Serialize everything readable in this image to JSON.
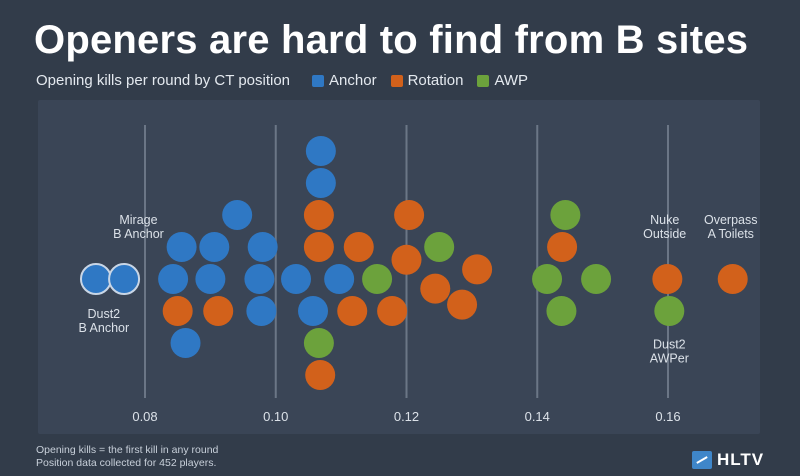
{
  "title": "Openers are hard to find from B sites",
  "subtitle": "Opening kills per round by CT position",
  "legend": [
    {
      "label": "Anchor",
      "color": "#2f78c4"
    },
    {
      "label": "Rotation",
      "color": "#d2611b"
    },
    {
      "label": "AWP",
      "color": "#6ca23c"
    }
  ],
  "footnote": {
    "line1": "Opening kills = the first kill in any round",
    "line2": "Position data collected for 452 players."
  },
  "brand": "HLTV",
  "chart_data": {
    "type": "scatter",
    "title": "Openers are hard to find from B sites",
    "subtitle": "Opening kills per round by CT position",
    "xlim": [
      0.075,
      0.175
    ],
    "ticks": [
      0.08,
      0.1,
      0.12,
      0.14,
      0.16
    ],
    "tick_labels": [
      "0.08",
      "0.10",
      "0.12",
      "0.14",
      "0.16"
    ],
    "grid": true,
    "legend_position": "top",
    "colors": {
      "Anchor": "#2f78c4",
      "Rotation": "#d2611b",
      "AWP": "#6ca23c",
      "Highlight": "#4a7fb6"
    },
    "points": [
      {
        "x": 0.0725,
        "row": 0,
        "g": "Highlight"
      },
      {
        "x": 0.0768,
        "row": 0,
        "g": "Highlight"
      },
      {
        "x": 0.0856,
        "row": -1,
        "g": "Anchor"
      },
      {
        "x": 0.0906,
        "row": -1,
        "g": "Anchor"
      },
      {
        "x": 0.098,
        "row": -1,
        "g": "Anchor"
      },
      {
        "x": 0.0941,
        "row": -2,
        "g": "Anchor"
      },
      {
        "x": 0.0843,
        "row": 0,
        "g": "Anchor"
      },
      {
        "x": 0.09,
        "row": 0,
        "g": "Anchor"
      },
      {
        "x": 0.0975,
        "row": 0,
        "g": "Anchor"
      },
      {
        "x": 0.085,
        "row": 1,
        "g": "Rotation"
      },
      {
        "x": 0.0912,
        "row": 1,
        "g": "Anchor_sep"
      },
      {
        "x": 0.0978,
        "row": 1,
        "g": "Anchor"
      },
      {
        "x": 0.0862,
        "row": 2,
        "g": "Anchor"
      },
      {
        "x": 0.1069,
        "row": -4,
        "g": "Anchor"
      },
      {
        "x": 0.1069,
        "row": -3,
        "g": "Anchor"
      },
      {
        "x": 0.1066,
        "row": -2,
        "g": "Rotation"
      },
      {
        "x": 0.1066,
        "row": -1,
        "g": "Rotation"
      },
      {
        "x": 0.1031,
        "row": 0,
        "g": "Anchor"
      },
      {
        "x": 0.1097,
        "row": 0,
        "g": "Anchor"
      },
      {
        "x": 0.1057,
        "row": 1,
        "g": "Anchor"
      },
      {
        "x": 0.1066,
        "row": 2,
        "g": "AWP"
      },
      {
        "x": 0.1068,
        "row": 3,
        "g": "Rotation"
      },
      {
        "x": 0.1127,
        "row": -1,
        "g": "Rotation"
      },
      {
        "x": 0.1155,
        "row": 0,
        "g": "AWP"
      },
      {
        "x": 0.1117,
        "row": 1,
        "g": "Rotation"
      },
      {
        "x": 0.1178,
        "row": 1,
        "g": "Rotation"
      },
      {
        "x": 0.1204,
        "row": -2,
        "g": "Rotation"
      },
      {
        "x": 0.12,
        "row": -0.6,
        "g": "Rotation"
      },
      {
        "x": 0.125,
        "row": -1,
        "g": "AWP"
      },
      {
        "x": 0.1244,
        "row": 0.3,
        "g": "Rotation"
      },
      {
        "x": 0.1285,
        "row": 0.8,
        "g": "Rotation"
      },
      {
        "x": 0.1308,
        "row": -0.3,
        "g": "Rotation"
      },
      {
        "x": 0.1443,
        "row": -2,
        "g": "AWP"
      },
      {
        "x": 0.1438,
        "row": -1,
        "g": "Rotation"
      },
      {
        "x": 0.1415,
        "row": 0,
        "g": "AWP"
      },
      {
        "x": 0.149,
        "row": 0,
        "g": "AWP"
      },
      {
        "x": 0.1437,
        "row": 1,
        "g": "AWP"
      },
      {
        "x": 0.1599,
        "row": 0,
        "g": "Rotation"
      },
      {
        "x": 0.1602,
        "row": 1,
        "g": "AWP"
      },
      {
        "x": 0.1699,
        "row": 0,
        "g": "Rotation"
      }
    ],
    "annotations": [
      {
        "lines": [
          "Mirage",
          "B Anchor"
        ],
        "x": 0.079,
        "row": -1.1,
        "anchor": "middle"
      },
      {
        "lines": [
          "Dust2",
          "B Anchor"
        ],
        "x": 0.0737,
        "row": 1.1,
        "anchor": "middle"
      },
      {
        "lines": [
          "Nuke",
          "Outside"
        ],
        "x": 0.1595,
        "row": -1.1,
        "anchor": "middle"
      },
      {
        "lines": [
          "Overpass",
          "A Toilets"
        ],
        "x": 0.1696,
        "row": -1.1,
        "anchor": "middle"
      },
      {
        "lines": [
          "Dust2",
          "AWPer"
        ],
        "x": 0.1602,
        "row": 2.05,
        "anchor": "middle"
      }
    ]
  }
}
